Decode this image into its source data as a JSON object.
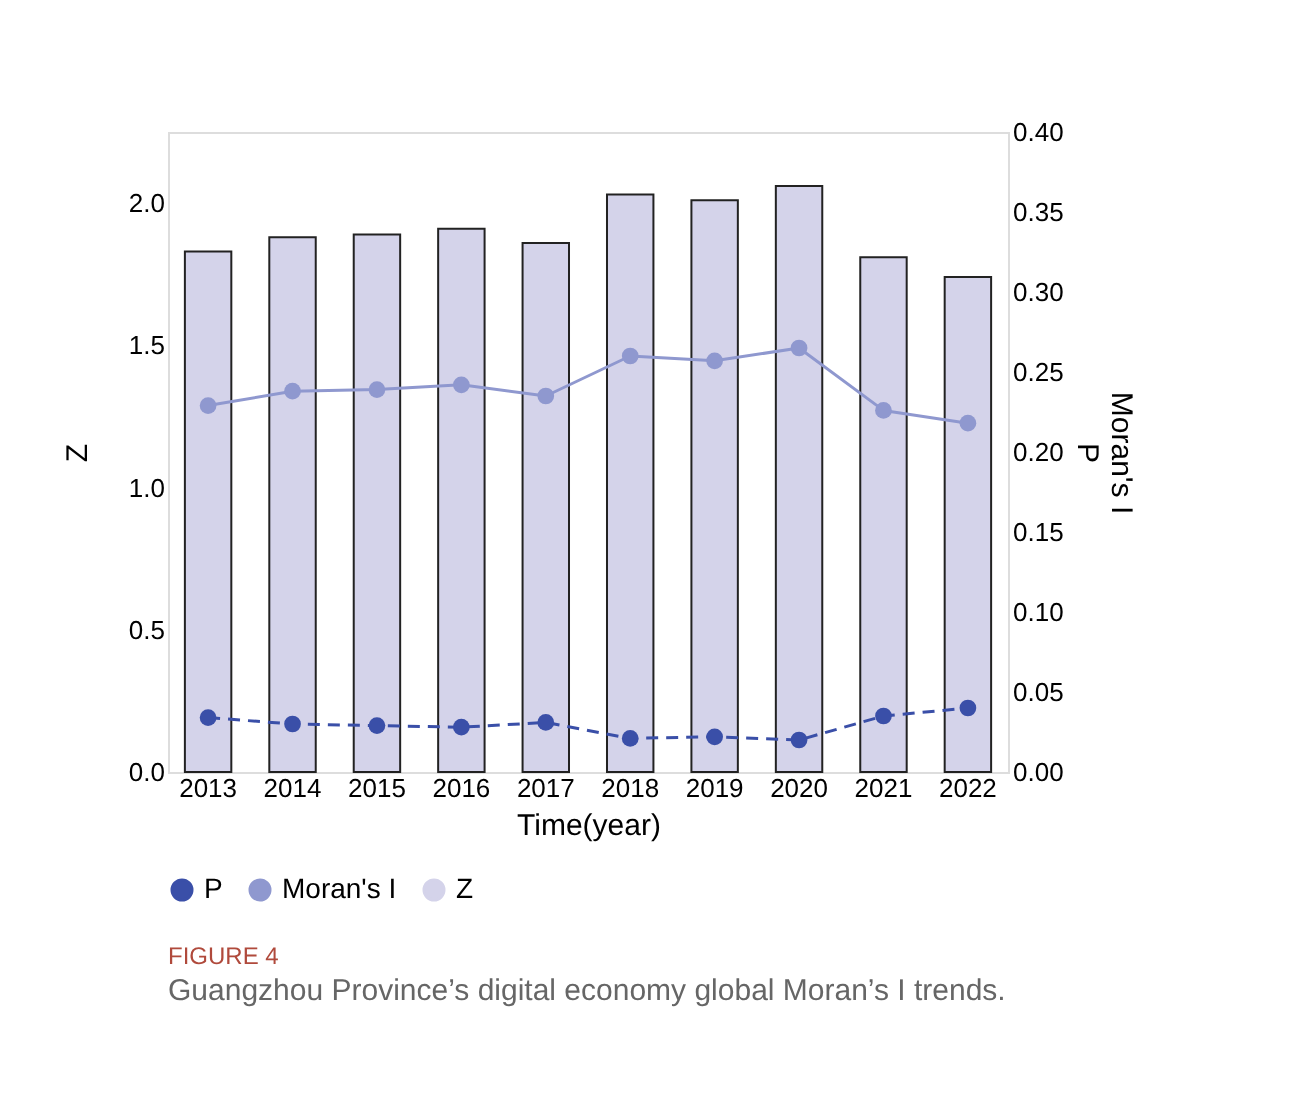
{
  "chart_data": {
    "type": "bar",
    "categories": [
      "2013",
      "2014",
      "2015",
      "2016",
      "2017",
      "2018",
      "2019",
      "2020",
      "2021",
      "2022"
    ],
    "xlabel": "Time(year)",
    "ylabel": "Z",
    "y2label": "Moran's I\nP",
    "ylim": [
      0,
      2.25
    ],
    "yticks": [
      {
        "value": 0,
        "label": "0.0"
      },
      {
        "value": 0.5,
        "label": "0.5"
      },
      {
        "value": 1,
        "label": "1.0"
      },
      {
        "value": 1.5,
        "label": "1.5"
      },
      {
        "value": 2,
        "label": "2.0"
      }
    ],
    "y2lim": [
      0,
      0.4
    ],
    "y2ticks": [
      {
        "value": 0,
        "label": "0.00"
      },
      {
        "value": 0.05,
        "label": "0.05"
      },
      {
        "value": 0.1,
        "label": "0.10"
      },
      {
        "value": 0.15,
        "label": "0.15"
      },
      {
        "value": 0.2,
        "label": "0.20"
      },
      {
        "value": 0.25,
        "label": "0.25"
      },
      {
        "value": 0.3,
        "label": "0.30"
      },
      {
        "value": 0.35,
        "label": "0.35"
      },
      {
        "value": 0.4,
        "label": "0.40"
      }
    ],
    "series": [
      {
        "name": "P",
        "type": "line",
        "axis": "y2",
        "color": "#3a4fa8",
        "line_style": "dashed",
        "marker": "circle",
        "values": [
          0.034,
          0.03,
          0.029,
          0.028,
          0.031,
          0.021,
          0.022,
          0.02,
          0.035,
          0.04
        ]
      },
      {
        "name": "Moran's I",
        "type": "line",
        "axis": "y2",
        "color": "#8f98cf",
        "line_style": "solid",
        "marker": "circle",
        "values": [
          0.229,
          0.238,
          0.239,
          0.242,
          0.235,
          0.26,
          0.257,
          0.265,
          0.226,
          0.218
        ]
      },
      {
        "name": "Z",
        "color": "#d4d3ea",
        "values": [
          1.83,
          1.88,
          1.89,
          1.91,
          1.86,
          2.03,
          2.01,
          2.06,
          1.81,
          1.74
        ]
      }
    ],
    "legend": "bottom",
    "grid": false,
    "annotations": [
      "FIGURE 4",
      "Guangzhou Province’s digital economy global Moran’s I trends."
    ]
  }
}
